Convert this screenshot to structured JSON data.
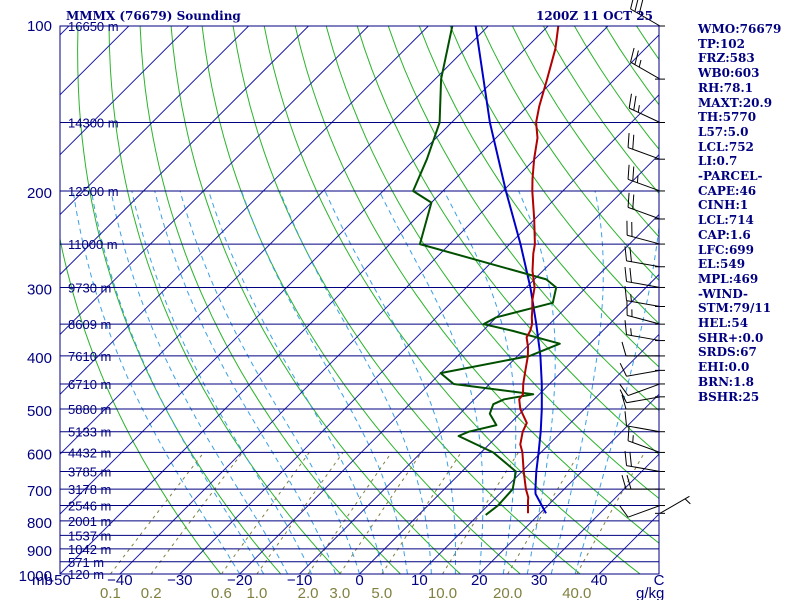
{
  "header": {
    "station_title": "MMMX (76679) Sounding",
    "valid_time": "1200Z 11 OCT 25"
  },
  "colors": {
    "frame": "#000080",
    "isobar": "#000080",
    "isotherm": "#1a1aa8",
    "dry_adiabat": "#2bb32b",
    "moist_adiabat": "#3aa0e6",
    "mixing_ratio": "#808040",
    "temperature": "#b00000",
    "dewpoint": "#005000",
    "parcel": "#0000c8",
    "wind_barb": "#000000"
  },
  "chart_data": {
    "type": "skew-t",
    "title": "MMMX (76679) Sounding",
    "pressure_axis_label": "mb",
    "temperature_axis_label": "C",
    "mixing_ratio_axis_label": "g/kg",
    "pressure_range": [
      1000,
      100
    ],
    "temperature_range": [
      -50,
      50
    ],
    "pressure_levels": [
      100,
      150,
      200,
      250,
      300,
      350,
      400,
      450,
      500,
      550,
      600,
      650,
      700,
      750,
      800,
      850,
      900,
      950,
      1000
    ],
    "pressure_tick_labels": [
      "100",
      "200",
      "300",
      "400",
      "500",
      "600",
      "700",
      "800",
      "900",
      "1000"
    ],
    "pressure_tick_values": [
      100,
      200,
      300,
      400,
      500,
      600,
      700,
      800,
      900,
      1000
    ],
    "height_labels": [
      {
        "p": 100,
        "label": "16650 m"
      },
      {
        "p": 150,
        "label": "14300 m"
      },
      {
        "p": 200,
        "label": "12500 m"
      },
      {
        "p": 250,
        "label": "11000 m"
      },
      {
        "p": 300,
        "label": "9730 m"
      },
      {
        "p": 350,
        "label": "8609 m"
      },
      {
        "p": 400,
        "label": "7610 m"
      },
      {
        "p": 450,
        "label": "6710 m"
      },
      {
        "p": 500,
        "label": "5880 m"
      },
      {
        "p": 550,
        "label": "5133 m"
      },
      {
        "p": 600,
        "label": "4432 m"
      },
      {
        "p": 650,
        "label": "3785 m"
      },
      {
        "p": 700,
        "label": "3178 m"
      },
      {
        "p": 750,
        "label": "2546 m"
      },
      {
        "p": 800,
        "label": "2001 m"
      },
      {
        "p": 850,
        "label": "1537 m"
      },
      {
        "p": 900,
        "label": "1042 m"
      },
      {
        "p": 950,
        "label": "571 m"
      },
      {
        "p": 1000,
        "label": "120 m"
      }
    ],
    "temperature_ticks": [
      {
        "t": -50,
        "label": "-50"
      },
      {
        "t": -40,
        "label": "−40"
      },
      {
        "t": -30,
        "label": "−30"
      },
      {
        "t": -20,
        "label": "−20"
      },
      {
        "t": -10,
        "label": "−10"
      },
      {
        "t": 0,
        "label": "0"
      },
      {
        "t": 10,
        "label": "10"
      },
      {
        "t": 20,
        "label": "20"
      },
      {
        "t": 30,
        "label": "30"
      },
      {
        "t": 40,
        "label": "40"
      },
      {
        "t": 50,
        "label": "C"
      }
    ],
    "mixing_ratio_ticks": [
      {
        "w": 0.1,
        "label": "0.1"
      },
      {
        "w": 0.2,
        "label": "0.2"
      },
      {
        "w": 0.6,
        "label": "0.6"
      },
      {
        "w": 1.0,
        "label": "1.0"
      },
      {
        "w": 2.0,
        "label": "2.0"
      },
      {
        "w": 3.0,
        "label": "3.0"
      },
      {
        "w": 5.0,
        "label": "5.0"
      },
      {
        "w": 10.0,
        "label": "10.0"
      },
      {
        "w": 20.0,
        "label": "20.0"
      },
      {
        "w": 40.0,
        "label": "40.0"
      }
    ],
    "temperature_profile": [
      {
        "p": 775,
        "t": 18.0
      },
      {
        "p": 750,
        "t": 16.7
      },
      {
        "p": 735,
        "t": 15.9
      },
      {
        "p": 725,
        "t": 15.4
      },
      {
        "p": 700,
        "t": 13.6
      },
      {
        "p": 650,
        "t": 10.3
      },
      {
        "p": 600,
        "t": 6.9
      },
      {
        "p": 580,
        "t": 5.2
      },
      {
        "p": 550,
        "t": 3.5
      },
      {
        "p": 530,
        "t": 2.7
      },
      {
        "p": 520,
        "t": 1.6
      },
      {
        "p": 500,
        "t": -0.7
      },
      {
        "p": 480,
        "t": -2.5
      },
      {
        "p": 470,
        "t": -2.7
      },
      {
        "p": 450,
        "t": -4.4
      },
      {
        "p": 425,
        "t": -6.3
      },
      {
        "p": 400,
        "t": -8.3
      },
      {
        "p": 385,
        "t": -9.8
      },
      {
        "p": 370,
        "t": -11.6
      },
      {
        "p": 360,
        "t": -12.1
      },
      {
        "p": 350,
        "t": -12.9
      },
      {
        "p": 340,
        "t": -14.1
      },
      {
        "p": 330,
        "t": -15.2
      },
      {
        "p": 317,
        "t": -16.8
      },
      {
        "p": 300,
        "t": -18.6
      },
      {
        "p": 280,
        "t": -21.7
      },
      {
        "p": 260,
        "t": -24.5
      },
      {
        "p": 250,
        "t": -25.8
      },
      {
        "p": 225,
        "t": -30.1
      },
      {
        "p": 200,
        "t": -35.1
      },
      {
        "p": 190,
        "t": -37.1
      },
      {
        "p": 175,
        "t": -40.1
      },
      {
        "p": 160,
        "t": -43.1
      },
      {
        "p": 150,
        "t": -45.9
      },
      {
        "p": 140,
        "t": -48.1
      },
      {
        "p": 125,
        "t": -51.3
      },
      {
        "p": 110,
        "t": -55.0
      },
      {
        "p": 100,
        "t": -58.3
      }
    ],
    "dewpoint_profile": [
      {
        "p": 780,
        "t": 11.2
      },
      {
        "p": 750,
        "t": 11.7
      },
      {
        "p": 700,
        "t": 11.4
      },
      {
        "p": 650,
        "t": 9.0
      },
      {
        "p": 600,
        "t": 2.0
      },
      {
        "p": 560,
        "t": -6.5
      },
      {
        "p": 550,
        "t": -5.5
      },
      {
        "p": 535,
        "t": -2.0
      },
      {
        "p": 510,
        "t": -5.0
      },
      {
        "p": 490,
        "t": -6.0
      },
      {
        "p": 480,
        "t": -5.0
      },
      {
        "p": 470,
        "t": -1.0
      },
      {
        "p": 450,
        "t": -16.0
      },
      {
        "p": 430,
        "t": -20.0
      },
      {
        "p": 400,
        "t": -8.0
      },
      {
        "p": 380,
        "t": -5.0
      },
      {
        "p": 360,
        "t": -15.0
      },
      {
        "p": 350,
        "t": -21.0
      },
      {
        "p": 340,
        "t": -20.0
      },
      {
        "p": 320,
        "t": -13.0
      },
      {
        "p": 300,
        "t": -15.0
      },
      {
        "p": 290,
        "t": -18.0
      },
      {
        "p": 250,
        "t": -45.0
      },
      {
        "p": 210,
        "t": -50.0
      },
      {
        "p": 200,
        "t": -55.0
      },
      {
        "p": 175,
        "t": -58.0
      },
      {
        "p": 150,
        "t": -62.0
      },
      {
        "p": 125,
        "t": -69.0
      },
      {
        "p": 100,
        "t": -76.0
      }
    ],
    "parcel_path": [
      {
        "p": 775,
        "t": 21.0
      },
      {
        "p": 750,
        "t": 19.0
      },
      {
        "p": 714,
        "t": 16.0
      },
      {
        "p": 700,
        "t": 15.2
      },
      {
        "p": 650,
        "t": 12.4
      },
      {
        "p": 600,
        "t": 9.6
      },
      {
        "p": 550,
        "t": 6.5
      },
      {
        "p": 500,
        "t": 2.9
      },
      {
        "p": 450,
        "t": -1.3
      },
      {
        "p": 400,
        "t": -6.2
      },
      {
        "p": 350,
        "t": -12.2
      },
      {
        "p": 300,
        "t": -19.3
      },
      {
        "p": 250,
        "t": -28.2
      },
      {
        "p": 200,
        "t": -39.5
      },
      {
        "p": 150,
        "t": -53.6
      },
      {
        "p": 100,
        "t": -72.1
      }
    ],
    "wind_profile": [
      {
        "p": 100,
        "dir": 300,
        "spd": 30
      },
      {
        "p": 125,
        "dir": 300,
        "spd": 25
      },
      {
        "p": 150,
        "dir": 295,
        "spd": 25
      },
      {
        "p": 175,
        "dir": 290,
        "spd": 20
      },
      {
        "p": 200,
        "dir": 290,
        "spd": 25
      },
      {
        "p": 225,
        "dir": 290,
        "spd": 20
      },
      {
        "p": 250,
        "dir": 285,
        "spd": 20
      },
      {
        "p": 275,
        "dir": 280,
        "spd": 20
      },
      {
        "p": 300,
        "dir": 280,
        "spd": 20
      },
      {
        "p": 325,
        "dir": 280,
        "spd": 15
      },
      {
        "p": 350,
        "dir": 285,
        "spd": 15
      },
      {
        "p": 375,
        "dir": 280,
        "spd": 15
      },
      {
        "p": 400,
        "dir": 270,
        "spd": 10
      },
      {
        "p": 425,
        "dir": 260,
        "spd": 10
      },
      {
        "p": 450,
        "dir": 250,
        "spd": 10
      },
      {
        "p": 475,
        "dir": 260,
        "spd": 10
      },
      {
        "p": 500,
        "dir": 270,
        "spd": 10
      },
      {
        "p": 550,
        "dir": 280,
        "spd": 10
      },
      {
        "p": 600,
        "dir": 290,
        "spd": 15
      },
      {
        "p": 650,
        "dir": 280,
        "spd": 20
      },
      {
        "p": 700,
        "dir": 270,
        "spd": 20
      },
      {
        "p": 750,
        "dir": 250,
        "spd": 10
      },
      {
        "p": 775,
        "dir": 60,
        "spd": 5
      }
    ],
    "indices": [
      "WMO:76679",
      "TP:102",
      "FRZ:583",
      "WB0:603",
      "RH:78.1",
      "MAXT:20.9",
      "TH:5770",
      "L57:5.0",
      "LCL:752",
      "LI:0.7",
      "-PARCEL-",
      "CAPE:46",
      "CINH:1",
      "LCL:714",
      "CAP:1.6",
      "LFC:699",
      "EL:549",
      "MPL:469",
      "-WIND-",
      "STM:79/11",
      "HEL:54",
      "SHR+:0.0",
      "SRDS:67",
      "EHI:0.0",
      "BRN:1.8",
      "BSHR:25"
    ]
  }
}
